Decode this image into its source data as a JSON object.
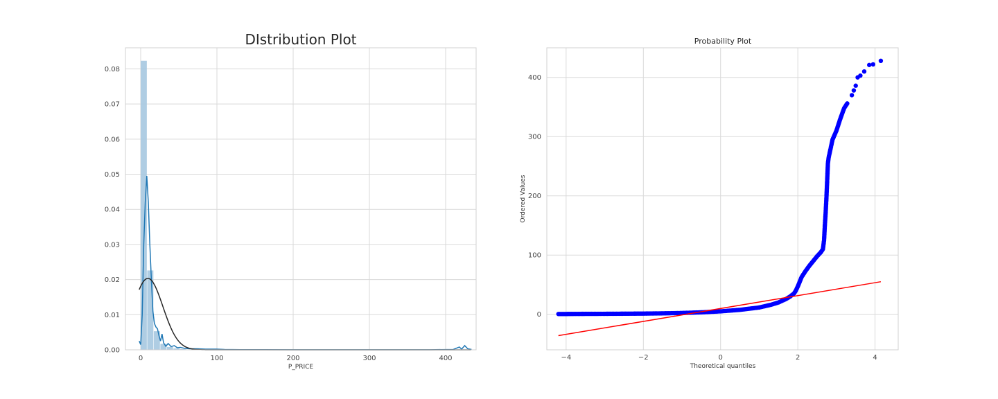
{
  "chart_data": [
    {
      "type": "histogram",
      "title": "DIstribution Plot",
      "xlabel": "P_PRICE",
      "ylabel": "",
      "xlim": [
        -20,
        440
      ],
      "ylim": [
        0,
        0.086
      ],
      "grid": true,
      "x_ticks": [
        0,
        100,
        200,
        300,
        400
      ],
      "x_tick_labels": [
        "0",
        "100",
        "200",
        "300",
        "400"
      ],
      "y_ticks": [
        0.0,
        0.01,
        0.02,
        0.03,
        0.04,
        0.05,
        0.06,
        0.07,
        0.08
      ],
      "y_tick_labels": [
        "0.00",
        "0.01",
        "0.02",
        "0.03",
        "0.04",
        "0.05",
        "0.06",
        "0.07",
        "0.08"
      ],
      "bin_width": 8.6,
      "bins": [
        {
          "x0": 0.0,
          "density": 0.0823
        },
        {
          "x0": 8.6,
          "density": 0.0226
        },
        {
          "x0": 17.2,
          "density": 0.0053
        },
        {
          "x0": 25.8,
          "density": 0.0017
        },
        {
          "x0": 34.4,
          "density": 0.0008
        },
        {
          "x0": 43.0,
          "density": 0.0004
        },
        {
          "x0": 51.6,
          "density": 0.0002
        },
        {
          "x0": 60.2,
          "density": 0.0001
        },
        {
          "x0": 68.8,
          "density": 0.0001
        },
        {
          "x0": 77.4,
          "density": 7e-05
        },
        {
          "x0": 86.0,
          "density": 5e-05
        },
        {
          "x0": 94.6,
          "density": 4e-05
        },
        {
          "x0": 103.2,
          "density": 3e-05
        },
        {
          "x0": 412.8,
          "density": 2e-05
        },
        {
          "x0": 421.4,
          "density": 3e-05
        }
      ],
      "kde": [
        [
          -2,
          0.0025
        ],
        [
          0,
          0.0015
        ],
        [
          2,
          0.01
        ],
        [
          4,
          0.03
        ],
        [
          6,
          0.042
        ],
        [
          8,
          0.0495
        ],
        [
          10,
          0.042
        ],
        [
          12,
          0.03
        ],
        [
          14,
          0.02
        ],
        [
          16,
          0.011
        ],
        [
          18,
          0.0075
        ],
        [
          20,
          0.0065
        ],
        [
          22,
          0.006
        ],
        [
          24,
          0.004
        ],
        [
          26,
          0.0025
        ],
        [
          28,
          0.0045
        ],
        [
          30,
          0.002
        ],
        [
          33,
          0.001
        ],
        [
          36,
          0.0018
        ],
        [
          40,
          0.0009
        ],
        [
          44,
          0.0012
        ],
        [
          48,
          0.0006
        ],
        [
          52,
          0.0007
        ],
        [
          58,
          0.0004
        ],
        [
          65,
          0.0003
        ],
        [
          75,
          0.0003
        ],
        [
          85,
          0.0002
        ],
        [
          100,
          0.0002
        ],
        [
          110,
          0.0001
        ],
        [
          130,
          5e-05
        ],
        [
          200,
          3e-05
        ],
        [
          300,
          3e-05
        ],
        [
          380,
          3e-05
        ],
        [
          410,
          0.0001
        ],
        [
          418,
          0.0008
        ],
        [
          421,
          0.0002
        ],
        [
          425,
          0.0012
        ],
        [
          429,
          0.0003
        ],
        [
          434,
          0.0001
        ]
      ],
      "normal_fit": {
        "mean": 9.5,
        "std": 19.6
      }
    },
    {
      "type": "scatter",
      "title": "Probability Plot",
      "xlabel": "Theoretical quantiles",
      "ylabel": "Ordered Values",
      "xlim": [
        -4.5,
        4.6
      ],
      "ylim": [
        -60,
        450
      ],
      "grid": true,
      "x_ticks": [
        -4,
        -2,
        0,
        2,
        4
      ],
      "x_tick_labels": [
        "−4",
        "−2",
        "0",
        "2",
        "4"
      ],
      "y_ticks": [
        0,
        100,
        200,
        300,
        400
      ],
      "y_tick_labels": [
        "0",
        "100",
        "200",
        "300",
        "400"
      ],
      "points_curve": [
        [
          -4.2,
          0.5
        ],
        [
          -4.0,
          0.5
        ],
        [
          -3.9,
          0.6
        ],
        [
          -3.5,
          0.7
        ],
        [
          -3.0,
          0.8
        ],
        [
          -2.5,
          1.0
        ],
        [
          -2.0,
          1.2
        ],
        [
          -1.5,
          1.6
        ],
        [
          -1.0,
          2.2
        ],
        [
          -0.5,
          3.3
        ],
        [
          0.0,
          5.0
        ],
        [
          0.5,
          7.5
        ],
        [
          1.0,
          11.5
        ],
        [
          1.3,
          16.0
        ],
        [
          1.5,
          20.0
        ],
        [
          1.7,
          26.0
        ],
        [
          1.8,
          30.0
        ],
        [
          1.9,
          35.0
        ],
        [
          1.95,
          40.0
        ],
        [
          2.0,
          47.0
        ],
        [
          2.05,
          55.0
        ],
        [
          2.1,
          63.0
        ],
        [
          2.2,
          73.0
        ],
        [
          2.3,
          82.0
        ],
        [
          2.4,
          90.0
        ],
        [
          2.5,
          98.0
        ],
        [
          2.6,
          105.0
        ],
        [
          2.65,
          110.0
        ],
        [
          2.68,
          125.0
        ],
        [
          2.7,
          150.0
        ],
        [
          2.72,
          170.0
        ],
        [
          2.74,
          195.0
        ],
        [
          2.76,
          225.0
        ],
        [
          2.78,
          255.0
        ],
        [
          2.8,
          265.0
        ],
        [
          2.85,
          280.0
        ],
        [
          2.9,
          295.0
        ],
        [
          3.0,
          310.0
        ],
        [
          3.1,
          330.0
        ],
        [
          3.2,
          348.0
        ],
        [
          3.3,
          358.0
        ]
      ],
      "points_tail": [
        [
          3.4,
          370
        ],
        [
          3.45,
          378
        ],
        [
          3.5,
          386
        ],
        [
          3.55,
          400
        ],
        [
          3.62,
          403
        ],
        [
          3.72,
          410
        ],
        [
          3.85,
          421
        ],
        [
          3.95,
          422
        ],
        [
          4.15,
          428
        ]
      ],
      "fit_line": {
        "x0": -4.2,
        "y0": -36,
        "x1": 4.15,
        "y1": 55,
        "color": "#ff0000"
      },
      "point_color": "#0000ff"
    }
  ],
  "colors": {
    "hist_bar": "#a6c8e0",
    "kde_line": "#1f77b4",
    "normal_fit_line": "#262626",
    "grid": "#d9d9d9"
  }
}
